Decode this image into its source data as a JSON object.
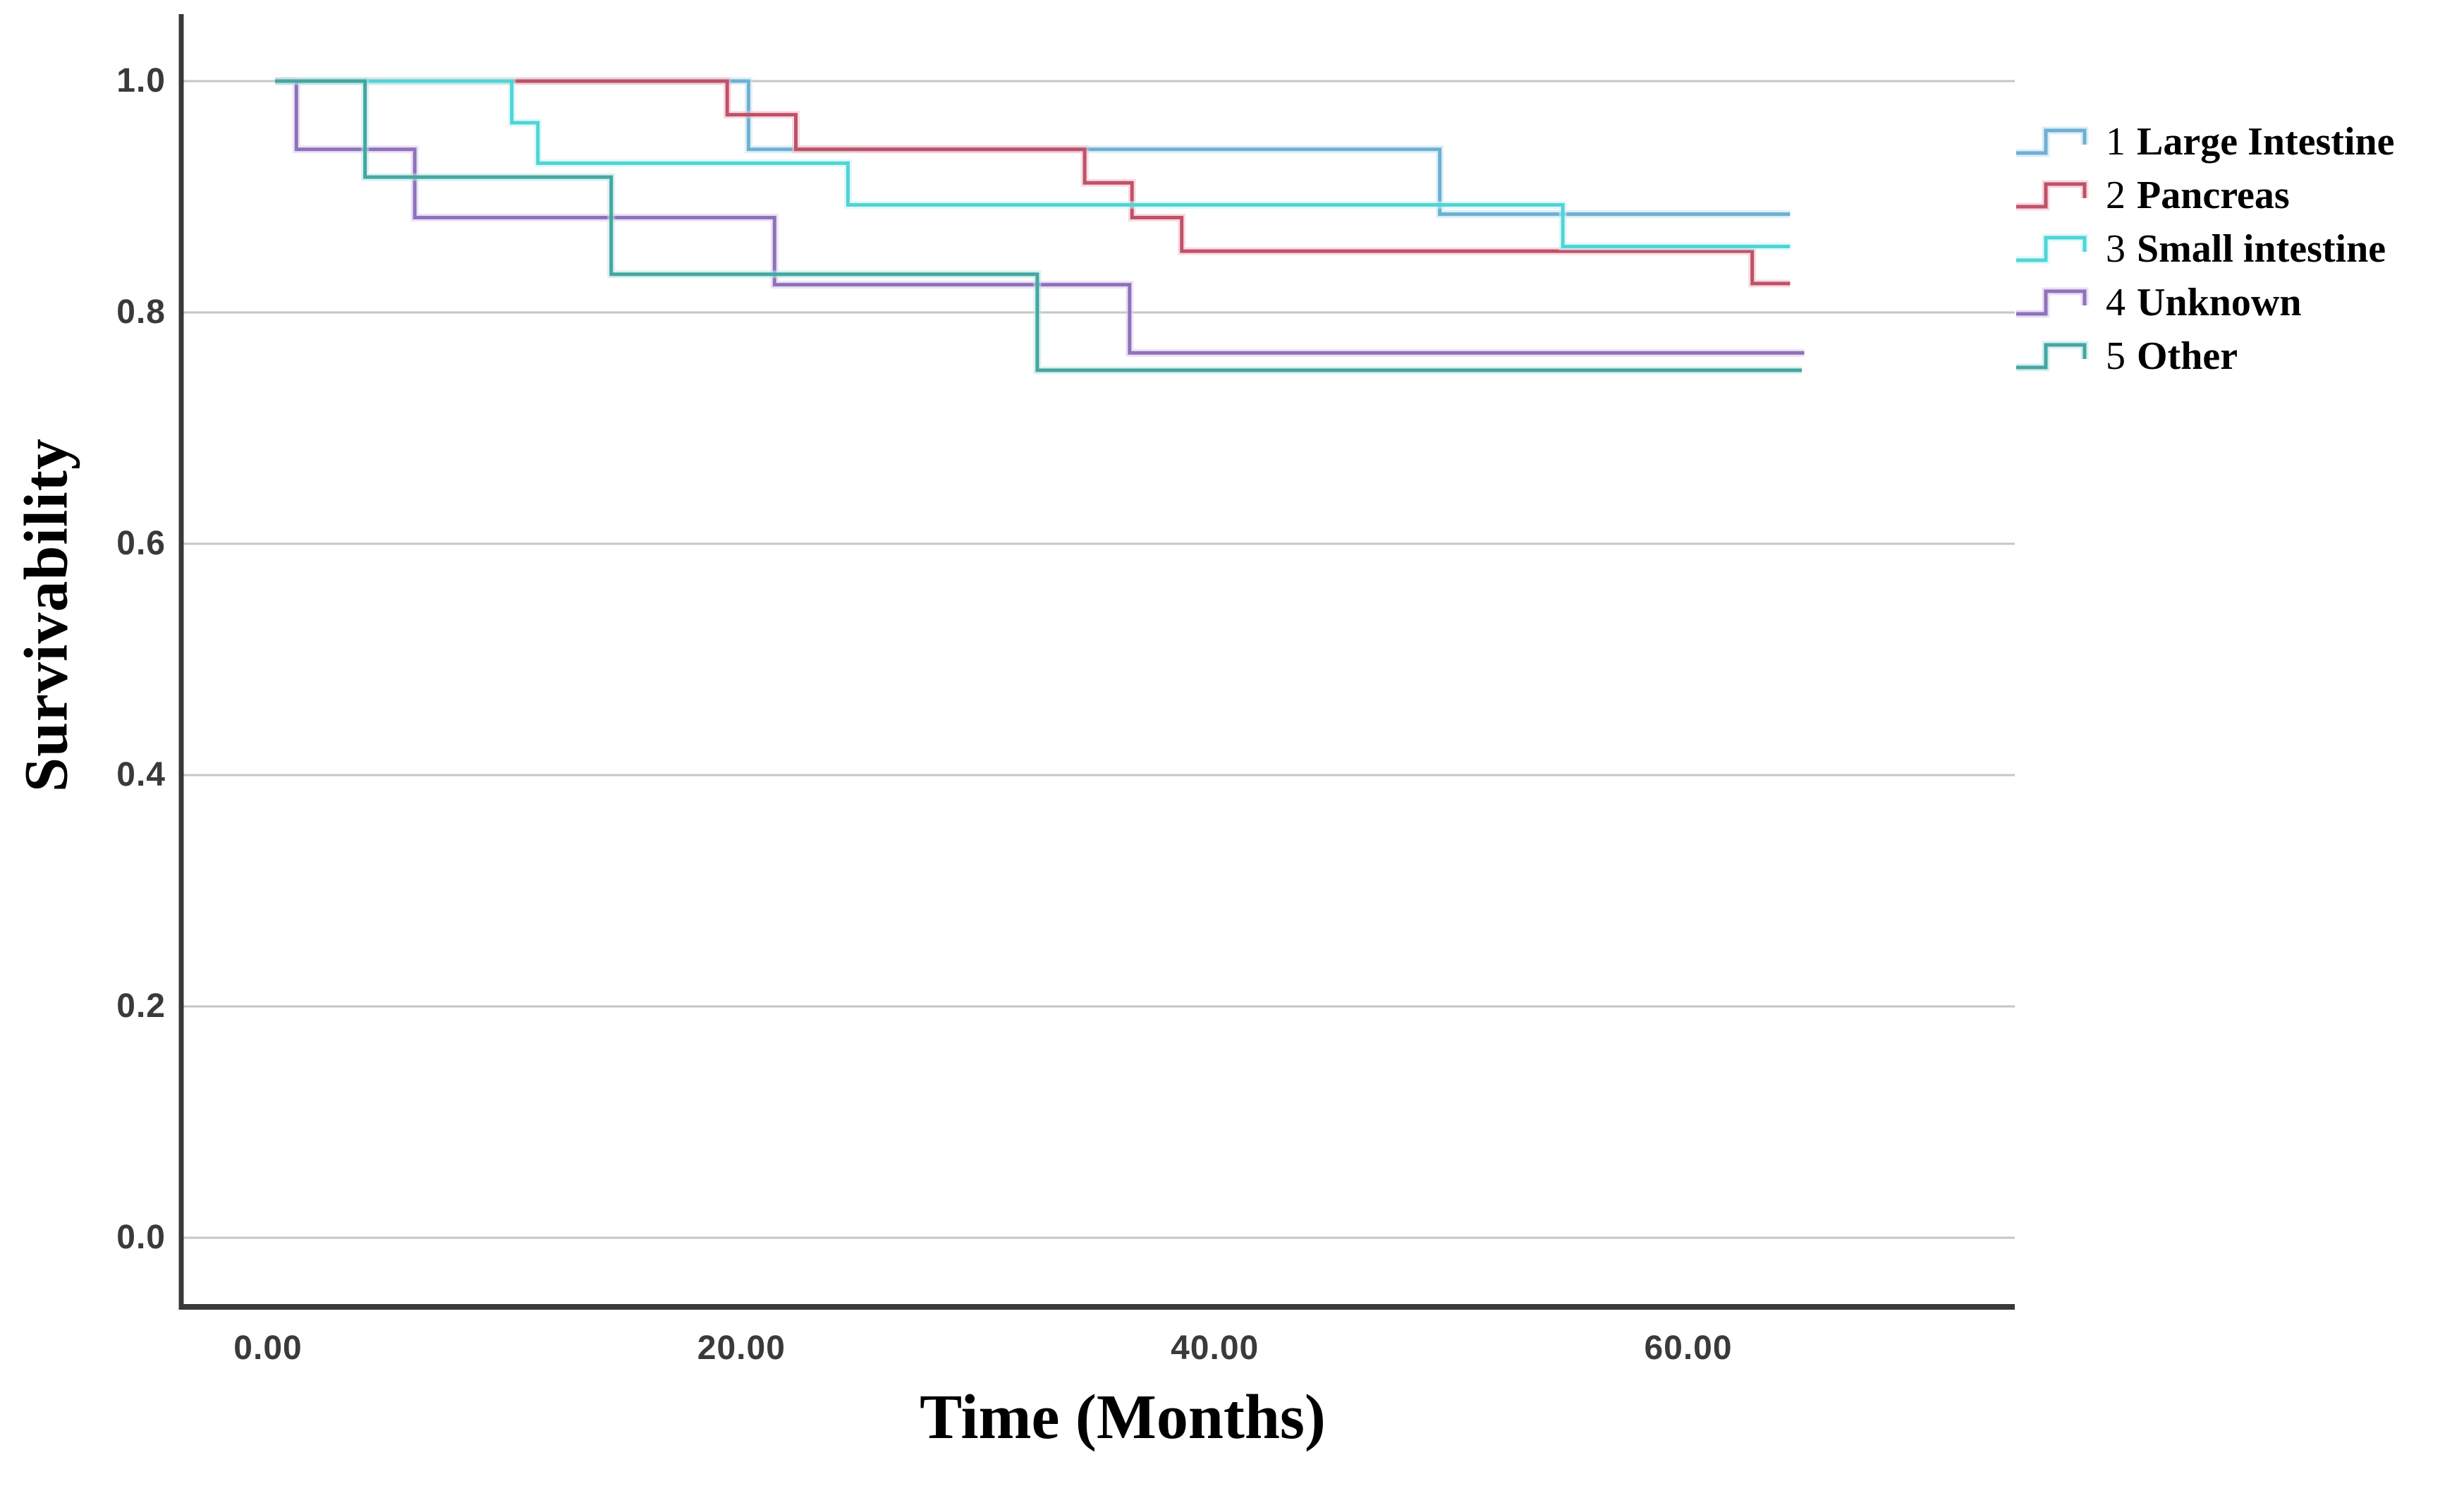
{
  "figure": {
    "kind": "kaplan-meier-survival-plot",
    "background": "#ffffff"
  },
  "chart_data": {
    "type": "line",
    "subtype": "kaplan-meier-step",
    "title": "",
    "xlabel": "Time (Months)",
    "ylabel": "Survivability",
    "grid": "horizontal-only",
    "legend_position": "right-outside",
    "xlim": [
      -3.7,
      73.8
    ],
    "ylim": [
      -0.06,
      1.06
    ],
    "x_ticks": [
      {
        "label": "0.00",
        "value": 0
      },
      {
        "label": "20.00",
        "value": 20
      },
      {
        "label": "40.00",
        "value": 40
      },
      {
        "label": "60.00",
        "value": 60
      }
    ],
    "y_ticks": [
      {
        "label": "1.0",
        "value": 1.0
      },
      {
        "label": "0.8",
        "value": 0.8
      },
      {
        "label": "0.6",
        "value": 0.6
      },
      {
        "label": "0.4",
        "value": 0.4
      },
      {
        "label": "0.2",
        "value": 0.2
      },
      {
        "label": "0.0",
        "value": 0.0
      }
    ],
    "style": {
      "gridline_color": "#c6c6c6",
      "axis_color": "#383838",
      "tick_label_color": "#3a3a3a",
      "plot_background": "#ffffff"
    },
    "series": [
      {
        "legend_number": "1",
        "name": "Large Intestine",
        "color": "#6fafd2",
        "halo_color": "#c3e3f3",
        "start": [
          0.3,
          1.0
        ],
        "events": [
          [
            20.3,
            0.941
          ],
          [
            49.5,
            0.885
          ]
        ],
        "end_time": 64.3
      },
      {
        "legend_number": "2",
        "name": "Pancreas",
        "color": "#c05168",
        "halo_color": "#f2bfcb",
        "start": [
          0.3,
          1.0
        ],
        "events": [
          [
            19.4,
            0.971
          ],
          [
            22.3,
            0.941
          ],
          [
            34.5,
            0.912
          ],
          [
            36.5,
            0.882
          ],
          [
            38.6,
            0.853
          ],
          [
            62.7,
            0.825
          ]
        ],
        "end_time": 64.3
      },
      {
        "legend_number": "3",
        "name": "Small intestine",
        "color": "#4fd5d6",
        "halo_color": "#c9f4f4",
        "start": [
          0.3,
          1.0
        ],
        "events": [
          [
            10.3,
            0.964
          ],
          [
            11.4,
            0.929
          ],
          [
            24.5,
            0.893
          ],
          [
            54.7,
            0.857
          ]
        ],
        "end_time": 64.3
      },
      {
        "legend_number": "4",
        "name": "Unknown",
        "color": "#8f72ba",
        "halo_color": "#dacbef",
        "start": [
          0.3,
          1.0
        ],
        "events": [
          [
            1.2,
            0.941
          ],
          [
            6.2,
            0.882
          ],
          [
            21.4,
            0.824
          ],
          [
            36.4,
            0.765
          ]
        ],
        "end_time": 64.9
      },
      {
        "legend_number": "5",
        "name": "Other",
        "color": "#43a7a2",
        "halo_color": "#bfe5e1",
        "start": [
          0.3,
          1.0
        ],
        "events": [
          [
            4.1,
            0.917
          ],
          [
            14.5,
            0.833
          ],
          [
            32.5,
            0.75
          ]
        ],
        "end_time": 64.8
      }
    ]
  }
}
